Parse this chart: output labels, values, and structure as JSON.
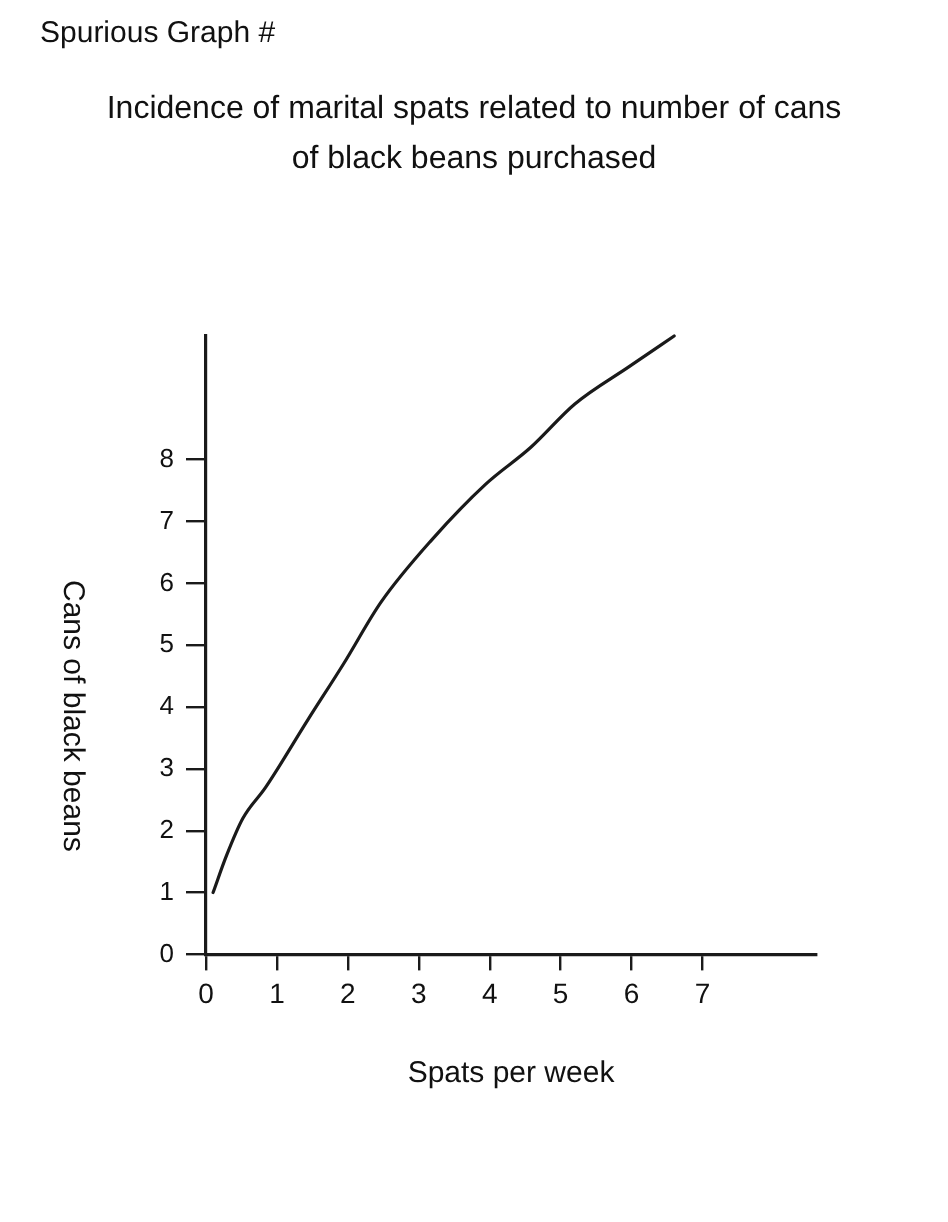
{
  "chart_data": {
    "type": "line",
    "title": "Spurious Graph #",
    "subtitle": "Incidence of marital spats related to number of cans of black beans purchased",
    "xlabel": "Spats per week",
    "ylabel": "Cans of black beans",
    "x": [
      0.1,
      0.29,
      0.52,
      0.84,
      1.44,
      1.94,
      2.47,
      3.18,
      3.94,
      4.58,
      5.2,
      5.96,
      6.6
    ],
    "values": [
      1.0,
      1.6,
      2.2,
      2.7,
      3.8,
      4.7,
      5.7,
      6.7,
      7.6,
      8.2,
      8.9,
      9.5,
      10.0
    ],
    "color": "#1a1a1a",
    "xlim": [
      0,
      8.6
    ],
    "ylim": [
      0,
      10
    ],
    "xticks": [
      0,
      1,
      2,
      3,
      4,
      5,
      6,
      7
    ],
    "yticks": [
      0,
      1,
      2,
      3,
      4,
      5,
      6,
      7,
      8
    ],
    "grid": false,
    "legend": false,
    "marker": "none",
    "line_style": "solid"
  }
}
